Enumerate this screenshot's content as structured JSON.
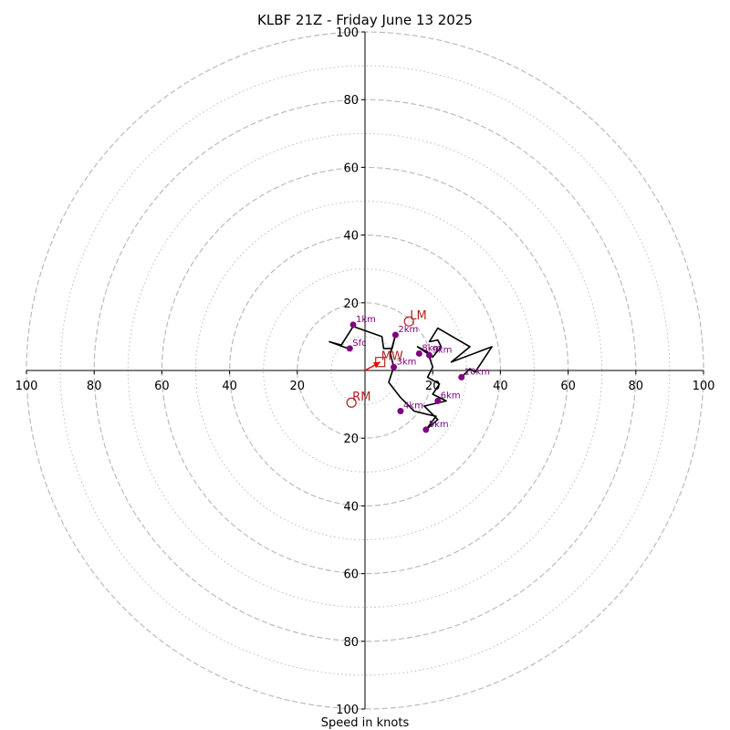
{
  "chart_data": {
    "type": "hodograph",
    "title": "KLBF 21Z - Friday June 13 2025",
    "xlabel": "Speed in knots",
    "axis_range": [
      -100,
      100
    ],
    "ticks": [
      {
        "value": -100,
        "label": "100"
      },
      {
        "value": -80,
        "label": "80"
      },
      {
        "value": -60,
        "label": "60"
      },
      {
        "value": -40,
        "label": "40"
      },
      {
        "value": -20,
        "label": "20"
      },
      {
        "value": 20,
        "label": "20"
      },
      {
        "value": 40,
        "label": "40"
      },
      {
        "value": 60,
        "label": "60"
      },
      {
        "value": 80,
        "label": "80"
      },
      {
        "value": 100,
        "label": "100"
      }
    ],
    "rings_major": [
      20,
      40,
      60,
      80,
      100
    ],
    "rings_minor": [
      10,
      30,
      50,
      70,
      90
    ],
    "colors": {
      "trace": "#000000",
      "height_marker": "#800080",
      "storm_motion": "#b22222",
      "grid": "#bbbbbb",
      "shear_arrow": "#ff0000"
    },
    "trace": [
      [
        -5,
        6.5
      ],
      [
        -10.5,
        8.5
      ],
      [
        -7,
        7.5
      ],
      [
        -3.5,
        13
      ],
      [
        5,
        10
      ],
      [
        5.5,
        6.5
      ],
      [
        8,
        6.5
      ],
      [
        9,
        10.5
      ],
      [
        7.5,
        5
      ],
      [
        8.5,
        1
      ],
      [
        7,
        -3.5
      ],
      [
        10.5,
        -8
      ],
      [
        14.5,
        -12
      ],
      [
        18.5,
        -13
      ],
      [
        21,
        -13.5
      ],
      [
        18,
        -17.5
      ],
      [
        21.5,
        -14.5
      ],
      [
        17.5,
        -10.5
      ],
      [
        24,
        -9
      ],
      [
        20,
        -7
      ],
      [
        22,
        -4
      ],
      [
        18.5,
        -2
      ],
      [
        20,
        1
      ],
      [
        18.5,
        5.5
      ],
      [
        15.5,
        7
      ],
      [
        20,
        4
      ],
      [
        22.5,
        7
      ],
      [
        21.5,
        9
      ],
      [
        19,
        8.5
      ],
      [
        21.5,
        12.5
      ],
      [
        31,
        7
      ],
      [
        25.5,
        2.5
      ],
      [
        37.5,
        7
      ],
      [
        32.5,
        -0.5
      ],
      [
        31,
        0.5
      ],
      [
        28.5,
        -2
      ]
    ],
    "height_points": [
      {
        "label": "Sfc",
        "u": -4.5,
        "v": 6.5
      },
      {
        "label": "1km",
        "u": -3.5,
        "v": 13.5
      },
      {
        "label": "2km",
        "u": 9,
        "v": 10.5
      },
      {
        "label": "3km",
        "u": 8.5,
        "v": 1
      },
      {
        "label": "4km",
        "u": 10.5,
        "v": -12
      },
      {
        "label": "5km",
        "u": 18,
        "v": -17.5
      },
      {
        "label": "6km",
        "u": 21.5,
        "v": -9
      },
      {
        "label": "8km",
        "u": 16,
        "v": 5
      },
      {
        "label": "9km",
        "u": 19,
        "v": 4.5
      },
      {
        "label": "10km",
        "u": 28.5,
        "v": -2
      }
    ],
    "storm_motions": [
      {
        "label": "LM",
        "u": 13,
        "v": 14.5
      },
      {
        "label": "RM",
        "u": -4,
        "v": -9.5
      },
      {
        "label": "MW",
        "u": 4.5,
        "v": 2.5
      }
    ],
    "shear_arrow": {
      "from": [
        0,
        0
      ],
      "to": [
        4.5,
        2.5
      ]
    }
  }
}
